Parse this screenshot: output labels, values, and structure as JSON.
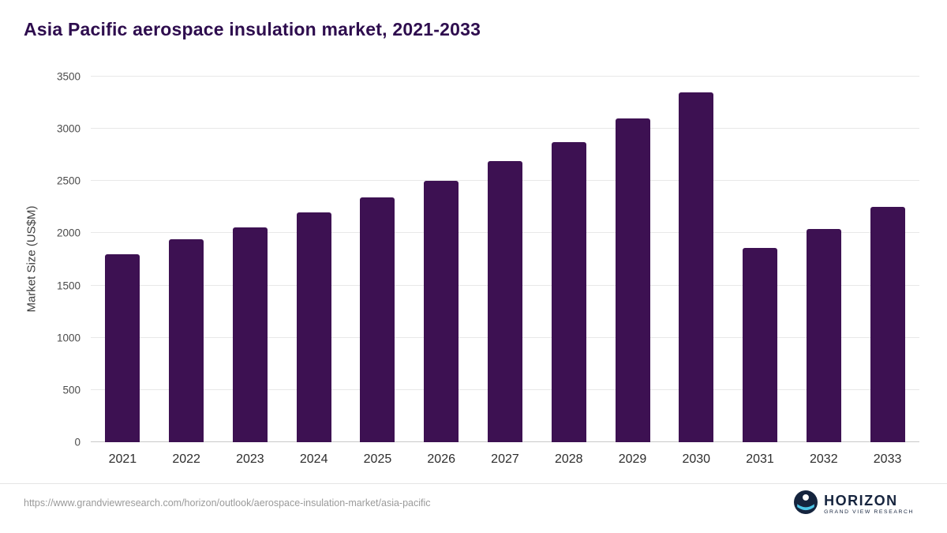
{
  "page": {
    "source_url": "https://www.grandviewresearch.com/horizon/outlook/aerospace-insulation-market/asia-pacific"
  },
  "logo": {
    "name": "HORIZON",
    "subtitle": "GRAND VIEW RESEARCH"
  },
  "chart_data": {
    "type": "bar",
    "title": "Asia Pacific aerospace insulation market, 2021-2033",
    "categories": [
      "2021",
      "2022",
      "2023",
      "2024",
      "2025",
      "2026",
      "2027",
      "2028",
      "2029",
      "2030",
      "2031",
      "2032",
      "2033"
    ],
    "values": [
      1800,
      1940,
      2060,
      2200,
      2340,
      2500,
      2690,
      2870,
      3100,
      3350,
      1860,
      2040,
      2250
    ],
    "xlabel": "",
    "ylabel": "Market Size (US$M)",
    "ylim": [
      0,
      3500
    ],
    "ytick_interval": 500,
    "grid": true,
    "legend_position": "none",
    "bar_color": "#3d1152",
    "title_color": "#2e0d4e"
  }
}
